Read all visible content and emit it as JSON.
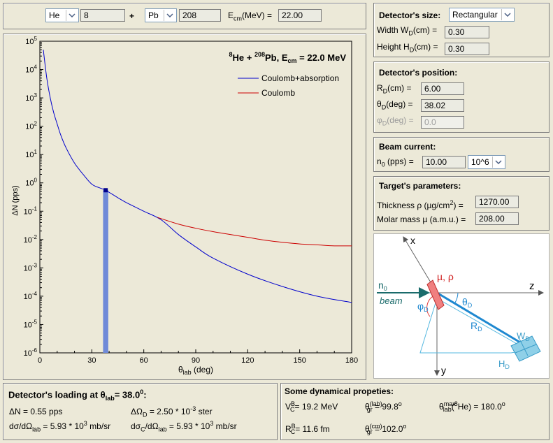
{
  "top_bar": {
    "projectile_element": "He",
    "projectile_mass": "8",
    "plus": "+",
    "target_element": "Pb",
    "target_mass": "208",
    "ecm_label_prefix": "E",
    "ecm_label_sub": "cm",
    "ecm_label_suffix": "(MeV) =",
    "ecm_value": "22.00"
  },
  "chart_title": {
    "p_mass": "8",
    "p_el": "He + ",
    "t_mass": "208",
    "t_el": "Pb, E",
    "sub": "cm",
    "rest": " = 22.0 MeV"
  },
  "chart_data": {
    "type": "line",
    "title": "8He + 208Pb, Ecm = 22.0 MeV",
    "xlabel": "θlab (deg)",
    "ylabel": "ΔN (pps)",
    "xlim": [
      0,
      180
    ],
    "ylim": [
      1e-06,
      100000.0
    ],
    "y_scale": "log",
    "x_ticks": [
      "0",
      "30",
      "60",
      "90",
      "120",
      "150",
      "180"
    ],
    "x_tick_values": [
      0,
      30,
      60,
      90,
      120,
      150,
      180
    ],
    "y_ticks": [
      {
        "base": "10",
        "exp": "5"
      },
      {
        "base": "10",
        "exp": "4"
      },
      {
        "base": "10",
        "exp": "3"
      },
      {
        "base": "10",
        "exp": "2"
      },
      {
        "base": "10",
        "exp": "1"
      },
      {
        "base": "10",
        "exp": "0"
      },
      {
        "base": "10",
        "exp": "-1"
      },
      {
        "base": "10",
        "exp": "-2"
      },
      {
        "base": "10",
        "exp": "-3"
      },
      {
        "base": "10",
        "exp": "-4"
      },
      {
        "base": "10",
        "exp": "-5"
      },
      {
        "base": "10",
        "exp": "-6"
      }
    ],
    "legend_position": "top-right",
    "series": [
      {
        "name": "Coulomb+absorption",
        "color": "#0000cc",
        "x": [
          2,
          4,
          6,
          8,
          10,
          12,
          15,
          20,
          25,
          30,
          35,
          38,
          45,
          50,
          60,
          70,
          80,
          90,
          100,
          120,
          140,
          160,
          180
        ],
        "y": [
          50000,
          5000,
          1000,
          300,
          120,
          50,
          18,
          5,
          2,
          0.9,
          0.65,
          0.55,
          0.3,
          0.2,
          0.1,
          0.05,
          0.015,
          0.0055,
          0.0022,
          0.0006,
          0.00022,
          0.0001,
          6e-05
        ]
      },
      {
        "name": "Coulomb",
        "color": "#cc0000",
        "x": [
          68,
          80,
          90,
          100,
          110,
          120,
          130,
          140,
          150,
          160,
          170,
          180
        ],
        "y": [
          0.06,
          0.035,
          0.025,
          0.019,
          0.015,
          0.012,
          0.0095,
          0.008,
          0.007,
          0.0065,
          0.006,
          0.006
        ]
      }
    ],
    "detector_marker": {
      "theta": 38.0,
      "value": 0.55,
      "width_deg": 3,
      "color": "#6f8ad8"
    }
  },
  "detector_size": {
    "title": "Detector's size:",
    "shape": "Rectangular",
    "width_label_a": "Width W",
    "width_label_sub": "D",
    "width_label_b": "(cm) =",
    "width_value": "0.30",
    "height_label_a": "Height H",
    "height_label_sub": "D",
    "height_label_b": "(cm) =",
    "height_value": "0.30"
  },
  "detector_position": {
    "title": "Detector's position:",
    "r_label_a": "R",
    "r_label_sub": "D",
    "r_label_b": "(cm) =",
    "r_value": "6.00",
    "theta_label_a": "θ",
    "theta_label_sub": "D",
    "theta_label_b": "(deg) =",
    "theta_value": "38.02",
    "phi_label_a": "φ",
    "phi_label_sub": "D",
    "phi_label_b": "(deg) =",
    "phi_value": "0.0"
  },
  "beam_current": {
    "title": "Beam current:",
    "n0_label_a": "n",
    "n0_label_sub": "0",
    "n0_label_b": " (pps) =",
    "n0_value": "10.00",
    "multiplier": "10^6"
  },
  "target_params": {
    "title": "Target's parameters:",
    "thickness_label_a": "Thickness ρ (µg/cm",
    "thickness_label_sup": "2",
    "thickness_label_b": ") =",
    "thickness_value": "1270.00",
    "molar_label": "Molar mass µ (a.m.u.) =",
    "molar_value": "208.00"
  },
  "geometry": {
    "x": "x",
    "z": "z",
    "y": "y",
    "n0": "n",
    "n0_sub": "0",
    "beam": "beam",
    "mu_rho": "µ, ρ",
    "theta": "θ",
    "theta_sub": "D",
    "phi": "φ",
    "phi_sub": "D",
    "r": "R",
    "r_sub": "D",
    "w": "W",
    "w_sub": "D",
    "h": "H",
    "h_sub": "D"
  },
  "loading": {
    "title_a": "Detector's loading at θ",
    "title_sub": "lab",
    "title_b": "= 38.0",
    "title_sup": "0",
    "title_c": ":",
    "dn": "ΔN = 0.55 pps",
    "domega_a": "ΔΩ",
    "domega_sub": "D",
    "domega_b": " = 2.50 * 10",
    "domega_sup": "-3",
    "domega_c": " ster",
    "dsig_a": "dσ/dΩ",
    "dsig_sub": "lab",
    "dsig_b": " = 5.93 * 10",
    "dsig_sup": "3",
    "dsig_c": " mb/sr",
    "dsigc_a": "dσ",
    "dsigc_sub1": "C",
    "dsigc_b": "/dΩ",
    "dsigc_sub2": "lab",
    "dsigc_c": " = 5.93 * 10",
    "dsigc_sup": "3",
    "dsigc_d": " mb/sr"
  },
  "dynamical": {
    "title": "Some dynamical propeties:",
    "vc_a": "V",
    "vc_sup": "B",
    "vc_sub": "C",
    "vc_b": "= 19.2 MeV",
    "rc_a": "R",
    "rc_sup": "B",
    "rc_sub": "C",
    "rc_b": "= 11.6 fm",
    "tgl_a": "θ",
    "tgl_sup": "(lab)",
    "tgl_sub": "gr",
    "tgl_b": " = 99.8",
    "tgl_deg": "o",
    "tgc_a": "θ",
    "tgc_sup": "(cm)",
    "tgc_sub": "gr",
    "tgc_b": " = 102.0",
    "tgc_deg": "o",
    "tmax_a": "θ",
    "tmax_sup": "max",
    "tmax_sub": "lab",
    "tmax_b": "(",
    "tmax_sup2": "8",
    "tmax_c": "He) = 180.0",
    "tmax_deg": "o"
  }
}
